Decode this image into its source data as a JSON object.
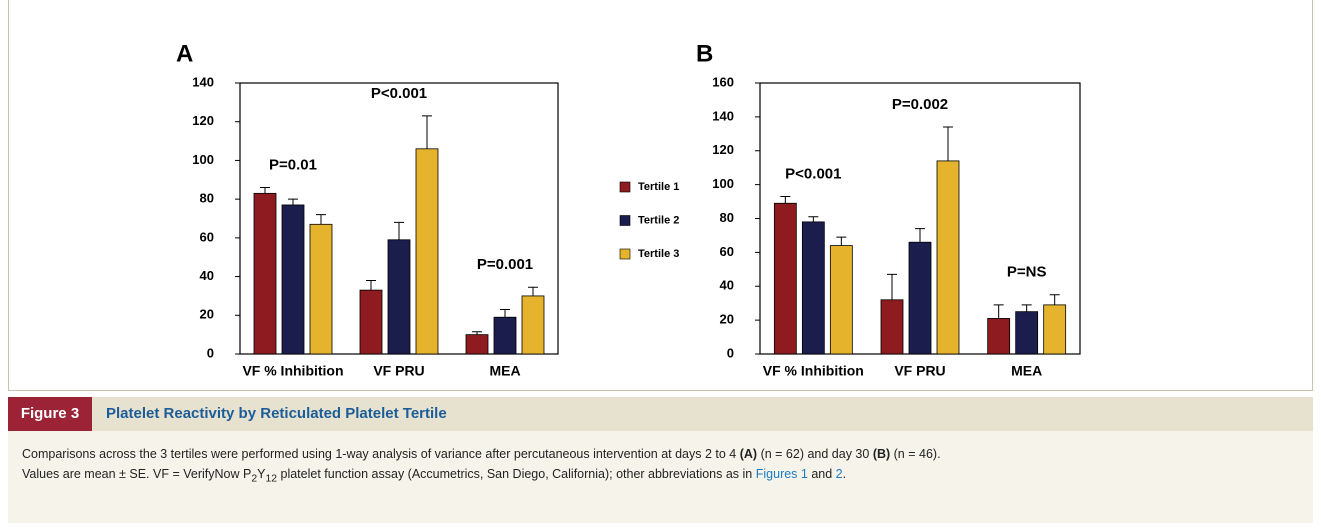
{
  "chart_data": [
    {
      "type": "bar",
      "panel": "A",
      "categories": [
        "VF % Inhibition",
        "VF PRU",
        "MEA"
      ],
      "ylim": [
        0,
        140
      ],
      "yticks": [
        0,
        20,
        40,
        60,
        80,
        100,
        120,
        140
      ],
      "annotations": [
        "P=0.01",
        "P<0.001",
        "P=0.001"
      ],
      "legend": "right",
      "series": [
        {
          "name": "Tertile 1",
          "color": "#8e1b20",
          "values": [
            83,
            33,
            10
          ],
          "errors": [
            3,
            5,
            1.5
          ]
        },
        {
          "name": "Tertile 2",
          "color": "#1b1d4d",
          "values": [
            77,
            59,
            19
          ],
          "errors": [
            3,
            9,
            4
          ]
        },
        {
          "name": "Tertile 3",
          "color": "#e5b42c",
          "values": [
            67,
            106,
            30
          ],
          "errors": [
            5,
            17,
            4.5
          ]
        }
      ]
    },
    {
      "type": "bar",
      "panel": "B",
      "categories": [
        "VF % Inhibition",
        "VF PRU",
        "MEA"
      ],
      "ylim": [
        0,
        160
      ],
      "yticks": [
        0,
        20,
        40,
        60,
        80,
        100,
        120,
        140,
        160
      ],
      "annotations": [
        "P<0.001",
        "P=0.002",
        "P=NS"
      ],
      "series": [
        {
          "color": "#8e1b20",
          "values": [
            89,
            32,
            21
          ],
          "errors": [
            4,
            15,
            8
          ]
        },
        {
          "color": "#1b1d4d",
          "values": [
            78,
            66,
            25
          ],
          "errors": [
            3,
            8,
            4
          ]
        },
        {
          "color": "#e5b42c",
          "values": [
            64,
            114,
            29
          ],
          "errors": [
            5,
            20,
            6
          ]
        }
      ]
    }
  ],
  "figure": {
    "label": "Figure 3",
    "title": "Platelet Reactivity by Reticulated Platelet Tertile",
    "caption": [
      "Comparisons across the 3 tertiles were performed using 1-way analysis of variance after percutaneous intervention at days 2 to 4 ",
      "(A)",
      " (n = 62) and day 30 ",
      "(B)",
      " (n = 46).",
      "Values are mean ± SE. VF = VerifyNow ",
      "P",
      "2",
      "Y",
      "12",
      " platelet function assay (Accumetrics, San Diego, California); other abbreviations as in ",
      "Figures 1",
      " and ",
      "2",
      "."
    ]
  }
}
